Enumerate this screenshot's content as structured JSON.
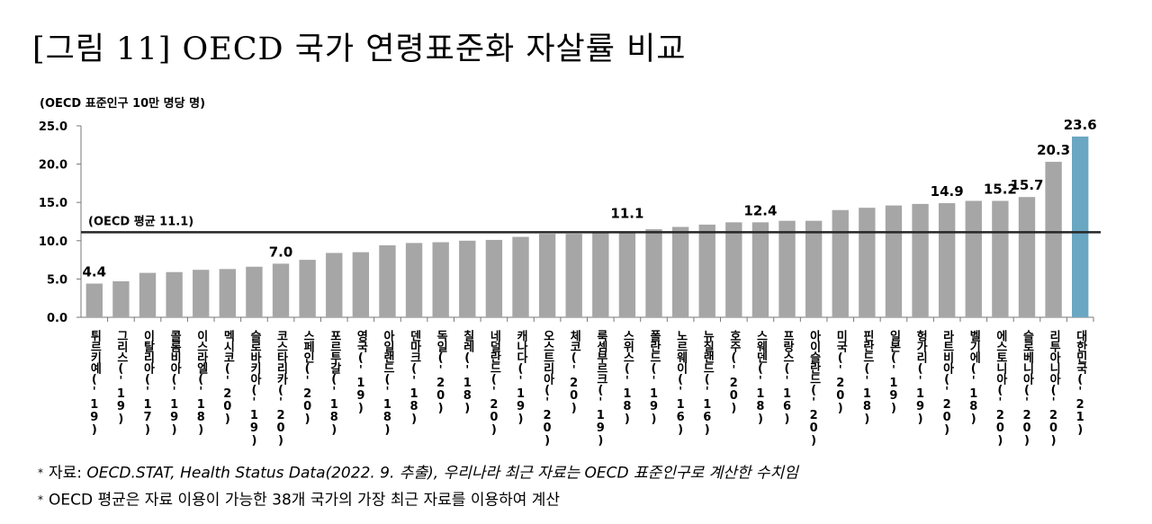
{
  "title": "[그림 11] OECD 국가 연령표준화 자살률 비교",
  "unit_label": "(OECD 표준인구 10만 명당 명)",
  "notes": {
    "note1_prefix": "자료: ",
    "note1_source": "OECD.STAT, Health Status Data(2022. 9. 추출), 우리나라 최근 자료는 OECD 표준인구로 계산한 수치임",
    "note2": "OECD 평균은 자료 이용이 가능한 38개 국가의 가장 최근 자료를 이용하여 계산",
    "bullet": "*"
  },
  "chart_data": {
    "type": "bar",
    "ylim": [
      0,
      25
    ],
    "y_ticks": [
      "0.0",
      "5.0",
      "10.0",
      "15.0",
      "20.0",
      "25.0"
    ],
    "grid": false,
    "reference_line": {
      "label": "(OECD 평균 11.1)",
      "value": 11.1
    },
    "bar_color": "#a6a6a6",
    "highlight_color": "#6aa7c2",
    "reference_color": "#262626",
    "categories": [
      "튀르키예('19)",
      "그리스('19)",
      "이탈리아('17)",
      "콜롬비아('19)",
      "이스라엘('18)",
      "멕시코('20)",
      "슬로바키아('19)",
      "코스타리카('20)",
      "스페인('20)",
      "포르투갈('18)",
      "영국('19)",
      "아일랜드('18)",
      "덴마크('18)",
      "독일('20)",
      "칠레('18)",
      "네덜란드('20)",
      "캐나다('19)",
      "오스트리아('20)",
      "체코('20)",
      "룩셈부르크('19)",
      "스위스('18)",
      "폴란드('19)",
      "노르웨이('16)",
      "뉴질랜드('16)",
      "호주('20)",
      "스웨덴('18)",
      "프랑스('16)",
      "아이슬란드('20)",
      "미국('20)",
      "핀란드('18)",
      "일본('19)",
      "헝가리('19)",
      "라트비아('20)",
      "벨기에('18)",
      "에스토니아('20)",
      "슬로베니아('20)",
      "리투아니아('20)",
      "대한민국('21)"
    ],
    "values": [
      4.4,
      4.7,
      5.8,
      5.9,
      6.2,
      6.3,
      6.6,
      7.0,
      7.5,
      8.4,
      8.5,
      9.4,
      9.7,
      9.8,
      10.0,
      10.1,
      10.5,
      10.9,
      10.9,
      11.0,
      11.1,
      11.5,
      11.8,
      12.1,
      12.4,
      12.4,
      12.6,
      12.6,
      14.0,
      14.3,
      14.6,
      14.8,
      14.9,
      15.2,
      15.2,
      15.7,
      20.3,
      23.6
    ],
    "data_labels": [
      {
        "index": 0,
        "text": "4.4"
      },
      {
        "index": 7,
        "text": "7.0"
      },
      {
        "index": 20,
        "text": "11.1"
      },
      {
        "index": 25,
        "text": "12.4"
      },
      {
        "index": 32,
        "text": "14.9"
      },
      {
        "index": 34,
        "text": "15.2"
      },
      {
        "index": 35,
        "text": "15.7"
      },
      {
        "index": 36,
        "text": "20.3"
      },
      {
        "index": 37,
        "text": "23.6"
      }
    ],
    "highlight_index": 37
  }
}
